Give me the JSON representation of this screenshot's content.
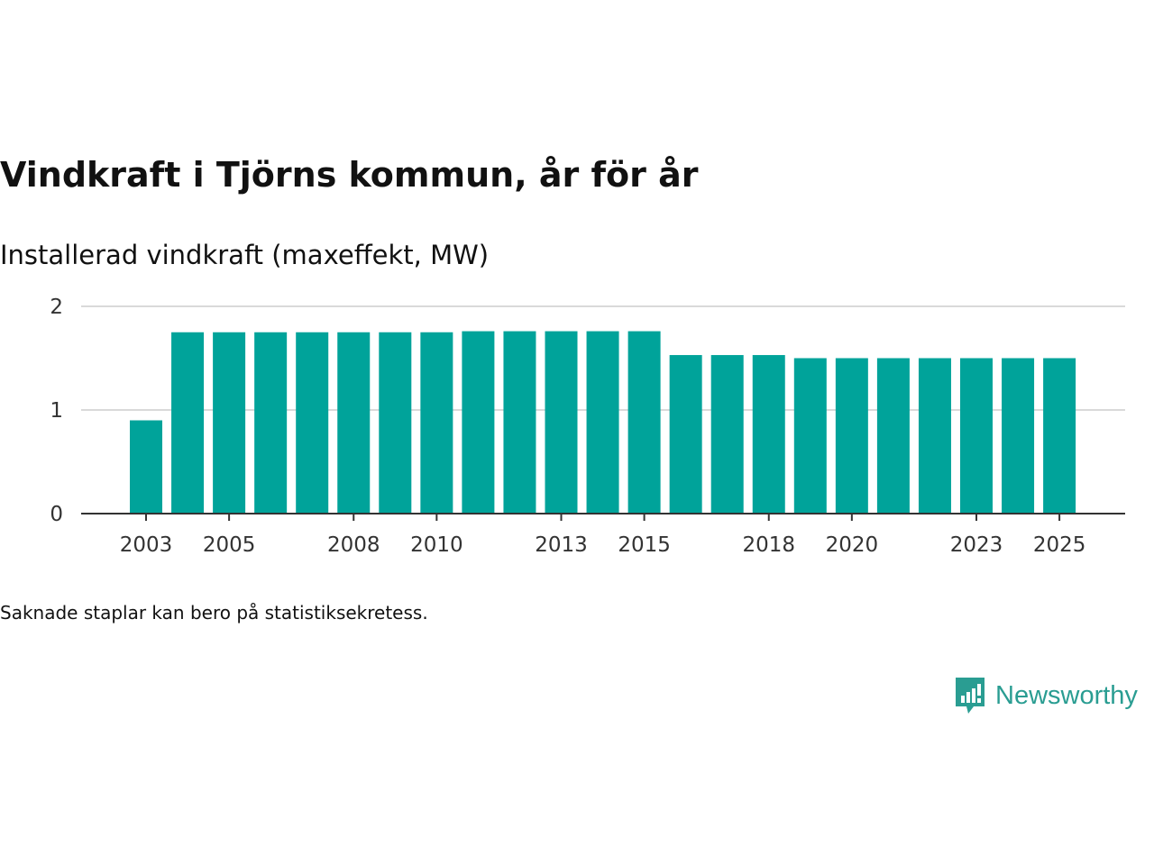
{
  "title": "Vindkraft i Tjörns kommun, år för år",
  "subtitle": "Installerad vindkraft (maxeffekt, MW)",
  "footnote": "Saknade staplar kan bero på statistiksekretess.",
  "brand": {
    "name": "Newsworthy",
    "icon": "newsworthy-logo-icon",
    "color": "#2a9d92"
  },
  "chart_data": {
    "type": "bar",
    "title": "Vindkraft i Tjörns kommun, år för år",
    "ylabel": "Installerad vindkraft (maxeffekt, MW)",
    "xlabel": "",
    "categories": [
      2003,
      2004,
      2005,
      2006,
      2007,
      2008,
      2009,
      2010,
      2011,
      2012,
      2013,
      2014,
      2015,
      2016,
      2017,
      2018,
      2019,
      2020,
      2021,
      2022,
      2023,
      2024,
      2025
    ],
    "values": [
      0.9,
      1.75,
      1.75,
      1.75,
      1.75,
      1.75,
      1.75,
      1.75,
      1.76,
      1.76,
      1.76,
      1.76,
      1.76,
      1.53,
      1.53,
      1.53,
      1.5,
      1.5,
      1.5,
      1.5,
      1.5,
      1.5,
      1.5
    ],
    "xticks": [
      2003,
      2005,
      2008,
      2010,
      2013,
      2015,
      2018,
      2020,
      2023,
      2025
    ],
    "yticks": [
      0,
      1,
      2
    ],
    "ylim": [
      0,
      2
    ],
    "grid": true,
    "bar_color": "#00a39a"
  }
}
